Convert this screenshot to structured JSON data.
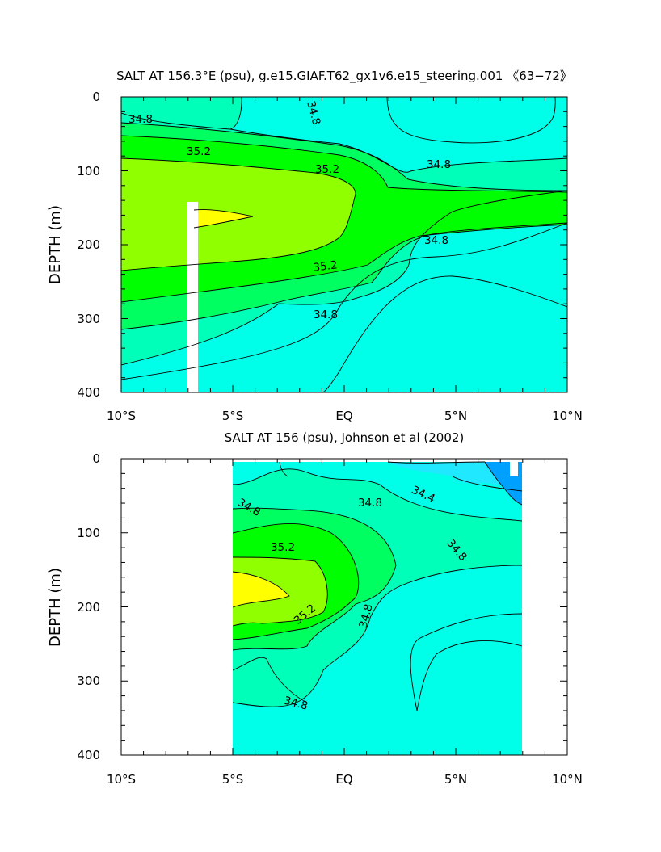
{
  "colors": {
    "s_lt_34_4": "#00a0ff",
    "s_34_4_34_6": "#20e8ff",
    "s_34_6_34_8": "#00ffe8",
    "s_34_8_35_0": "#00ffb8",
    "s_35_0_35_2": "#00ff60",
    "s_35_2_35_4": "#00ff00",
    "s_35_4_35_6": "#90ff00",
    "s_gt_35_6": "#ffff00",
    "missing": "#ffffff"
  },
  "chart_data": [
    {
      "type": "contour",
      "title": "SALT AT 156.3°E (psu), g.e15.GIAF.T62_gx1v6.e15_steering.001 《63−72》",
      "ylabel": "DEPTH (m)",
      "xlabel": "",
      "xlim": [
        -10,
        10
      ],
      "ylim": [
        400,
        0
      ],
      "x_ticks": [
        -10,
        -5,
        0,
        5,
        10
      ],
      "x_tick_labels": [
        "10°S",
        "5°S",
        "EQ",
        "5°N",
        "10°N"
      ],
      "y_ticks": [
        0,
        100,
        200,
        300,
        400
      ],
      "y_tick_labels": [
        "0",
        "100",
        "200",
        "300",
        "400"
      ],
      "contour_interval": 0.2,
      "missing_data_column": {
        "lat_range": [
          -3.0,
          -2.6
        ],
        "depth_range": [
          145,
          400
        ]
      },
      "contour_labels": [
        {
          "text": "34.8",
          "lat": -9.1,
          "depth": 30
        },
        {
          "text": "34.8",
          "lat": -1.6,
          "depth": 22
        },
        {
          "text": "35.2",
          "lat": -6.7,
          "depth": 72
        },
        {
          "text": "35.2",
          "lat": -0.7,
          "depth": 118
        },
        {
          "text": "34.8",
          "lat": 3.4,
          "depth": 93
        },
        {
          "text": "35.2",
          "lat": -0.9,
          "depth": 232
        },
        {
          "text": "34.8",
          "lat": 3.4,
          "depth": 200
        },
        {
          "text": "34.8",
          "lat": -0.9,
          "depth": 296
        }
      ]
    },
    {
      "type": "contour",
      "title": "SALT AT 156 (psu), Johnson et al (2002)",
      "ylabel": "DEPTH (m)",
      "xlabel": "",
      "xlim": [
        -10,
        10
      ],
      "ylim": [
        400,
        0
      ],
      "data_lat_range": [
        -5,
        8
      ],
      "x_ticks": [
        -10,
        -5,
        0,
        5,
        10
      ],
      "x_tick_labels": [
        "10°S",
        "5°S",
        "EQ",
        "5°N",
        "10°N"
      ],
      "y_ticks": [
        0,
        100,
        200,
        300,
        400
      ],
      "y_tick_labels": [
        "0",
        "100",
        "200",
        "300",
        "400"
      ],
      "contour_interval": 0.2,
      "contour_labels": [
        {
          "text": "34.8",
          "lat": -4.3,
          "depth": 68
        },
        {
          "text": "35.2",
          "lat": -3.0,
          "depth": 118
        },
        {
          "text": "34.8",
          "lat": 0.9,
          "depth": 60
        },
        {
          "text": "34.4",
          "lat": 3.4,
          "depth": 50
        },
        {
          "text": "34.8",
          "lat": 4.8,
          "depth": 118
        },
        {
          "text": "35.2",
          "lat": -1.5,
          "depth": 206
        },
        {
          "text": "34.8",
          "lat": 1.1,
          "depth": 212
        },
        {
          "text": "34.8",
          "lat": -2.8,
          "depth": 332
        }
      ]
    }
  ]
}
